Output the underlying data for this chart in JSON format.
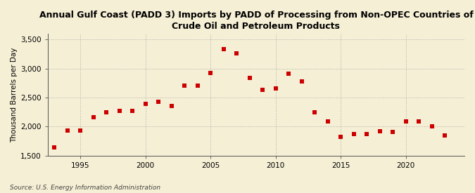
{
  "title": "Annual Gulf Coast (PADD 3) Imports by PADD of Processing from Non-OPEC Countries of\nCrude Oil and Petroleum Products",
  "ylabel": "Thousand Barrels per Day",
  "source": "Source: U.S. Energy Information Administration",
  "years": [
    1993,
    1994,
    1995,
    1996,
    1997,
    1998,
    1999,
    2000,
    2001,
    2002,
    2003,
    2004,
    2005,
    2006,
    2007,
    2008,
    2009,
    2010,
    2011,
    2012,
    2013,
    2014,
    2015,
    2016,
    2017,
    2018,
    2019,
    2020,
    2021,
    2022,
    2023
  ],
  "values": [
    1640,
    1930,
    1930,
    2160,
    2240,
    2270,
    2270,
    2390,
    2430,
    2360,
    2700,
    2700,
    2920,
    3330,
    3260,
    2840,
    2630,
    2660,
    2910,
    2780,
    2250,
    2090,
    1820,
    1870,
    1870,
    1920,
    1910,
    2090,
    2090,
    2000,
    1850
  ],
  "marker_color": "#cc0000",
  "bg_color": "#f5efd5",
  "plot_bg_color": "#f5efd5",
  "grid_color": "#aaaaaa",
  "ylim": [
    1500,
    3600
  ],
  "yticks": [
    1500,
    2000,
    2500,
    3000,
    3500
  ],
  "ytick_labels": [
    "1,500",
    "2,000",
    "2,500",
    "3,000",
    "3,500"
  ],
  "xlim": [
    1992.5,
    2024.5
  ],
  "xticks": [
    1995,
    2000,
    2005,
    2010,
    2015,
    2020
  ],
  "title_fontsize": 9.0,
  "axis_fontsize": 7.5,
  "tick_fontsize": 7.5,
  "source_fontsize": 6.5
}
